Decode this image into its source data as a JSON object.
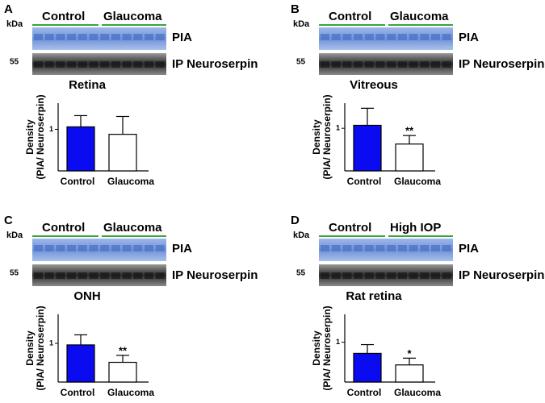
{
  "panels": [
    {
      "letter": "A",
      "kda": "kDa",
      "groups": [
        "Control",
        "Glaucoma"
      ],
      "marker": "55",
      "blot_labels": [
        "PIA",
        "IP Neuroserpin"
      ]
    },
    {
      "letter": "B",
      "kda": "kDa",
      "groups": [
        "Control",
        "Glaucoma"
      ],
      "marker": "55",
      "blot_labels": [
        "PIA",
        "IP Neuroserpin"
      ]
    },
    {
      "letter": "C",
      "kda": "kDa",
      "groups": [
        "Control",
        "Glaucoma"
      ],
      "marker": "55",
      "blot_labels": [
        "PIA",
        "IP Neuroserpin"
      ]
    },
    {
      "letter": "D",
      "kda": "kDa",
      "groups": [
        "Control",
        "High IOP"
      ],
      "marker": "55",
      "blot_labels": [
        "PIA",
        "IP Neuroserpin"
      ]
    }
  ],
  "chart_data": [
    {
      "type": "bar",
      "title": "Retina",
      "ylabel": [
        "Density",
        "(PIA/ Neuroserpin)"
      ],
      "categories": [
        "Control",
        "Glaucoma"
      ],
      "values": [
        1.06,
        0.88
      ],
      "errors": [
        0.27,
        0.43
      ],
      "colors": [
        "#0b0bf2",
        "#ffffff"
      ],
      "ylim": [
        0,
        1.63
      ],
      "yticks": [
        1
      ]
    },
    {
      "type": "bar",
      "title": "Vitreous",
      "ylabel": [
        "Density",
        "(PIA/ Neuroserpin)"
      ],
      "categories": [
        "Control",
        "Glaucoma"
      ],
      "values": [
        1.07,
        0.63
      ],
      "errors": [
        0.4,
        0.2
      ],
      "colors": [
        "#0b0bf2",
        "#ffffff"
      ],
      "ylim": [
        0,
        1.59
      ],
      "yticks": [
        1
      ],
      "annotations": [
        null,
        "**"
      ]
    },
    {
      "type": "bar",
      "title": "ONH",
      "ylabel": [
        "Density",
        "(PIA/ Neuroserpin)"
      ],
      "categories": [
        "Control",
        "Glaucoma"
      ],
      "values": [
        0.96,
        0.51
      ],
      "errors": [
        0.26,
        0.18
      ],
      "colors": [
        "#0b0bf2",
        "#ffffff"
      ],
      "ylim": [
        0,
        1.75
      ],
      "yticks": [
        1
      ],
      "annotations": [
        null,
        "**"
      ]
    },
    {
      "type": "bar",
      "title": "Rat retina",
      "ylabel": [
        "Density",
        "(PIA/ Neuroserpin)"
      ],
      "categories": [
        "Control",
        "Glaucoma"
      ],
      "values": [
        0.72,
        0.43
      ],
      "errors": [
        0.22,
        0.17
      ],
      "colors": [
        "#0b0bf2",
        "#ffffff"
      ],
      "ylim": [
        0,
        1.7
      ],
      "yticks": [
        1
      ],
      "annotations": [
        null,
        "*"
      ]
    }
  ]
}
